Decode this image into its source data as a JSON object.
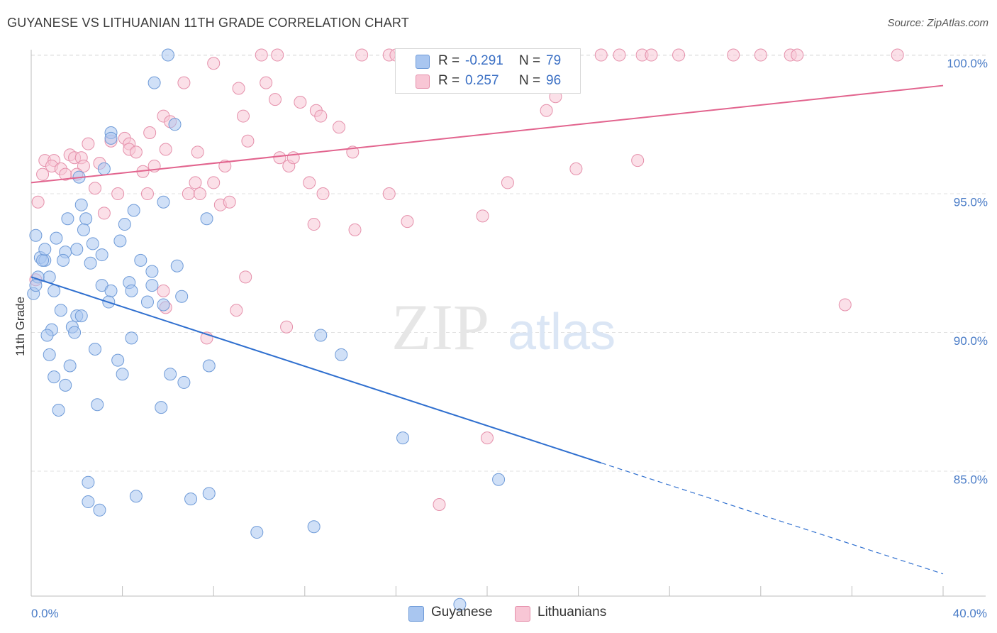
{
  "title": "GUYANESE VS LITHUANIAN 11TH GRADE CORRELATION CHART",
  "source": "Source: ZipAtlas.com",
  "watermark": {
    "part1": "ZIP",
    "part2": "atlas"
  },
  "legend": {
    "rows": [
      {
        "r_label": "R =",
        "r_value": "-0.291",
        "n_label": "N =",
        "n_value": "79",
        "color": "#a9c6f0",
        "border": "#6f9bd8"
      },
      {
        "r_label": "R =",
        "r_value": "0.257",
        "n_label": "N =",
        "n_value": "96",
        "color": "#f8c6d5",
        "border": "#e590ab"
      }
    ]
  },
  "bottom_legend": {
    "guyanese": "Guyanese",
    "lithuanians": "Lithuanians"
  },
  "colors": {
    "guyanese_fill": "#a9c6f0",
    "guyanese_stroke": "#6f9bd8",
    "guyanese_line": "#2f6fcf",
    "lithuanian_fill": "#f8c6d5",
    "lithuanian_stroke": "#e590ab",
    "lithuanian_line": "#e2648e",
    "tick_text": "#4a7cc7",
    "grid": "#e2e2e2"
  },
  "chart_data": {
    "type": "scatter",
    "title": "GUYANESE VS LITHUANIAN 11TH GRADE CORRELATION CHART",
    "xlabel": "",
    "ylabel": "11th Grade",
    "xlim": [
      0,
      40
    ],
    "ylim": [
      80.5,
      100.5
    ],
    "x_ticks": [
      "0.0%",
      "40.0%"
    ],
    "y_ticks": [
      {
        "value": 100,
        "label": "100.0%"
      },
      {
        "value": 95,
        "label": "95.0%"
      },
      {
        "value": 90,
        "label": "90.0%"
      },
      {
        "value": 85,
        "label": "85.0%"
      }
    ],
    "grid": true,
    "series": [
      {
        "name": "Guyanese",
        "trend": {
          "x": [
            0,
            25
          ],
          "y": [
            92.0,
            85.3
          ],
          "extend_to": [
            40,
            81.3
          ]
        },
        "points": [
          [
            6.0,
            100.0
          ],
          [
            5.4,
            99.0
          ],
          [
            3.5,
            97.2
          ],
          [
            3.5,
            97.0
          ],
          [
            6.3,
            97.5
          ],
          [
            3.2,
            95.9
          ],
          [
            2.1,
            95.6
          ],
          [
            2.2,
            94.6
          ],
          [
            1.6,
            94.1
          ],
          [
            2.4,
            94.1
          ],
          [
            2.3,
            93.7
          ],
          [
            4.5,
            94.4
          ],
          [
            4.1,
            93.9
          ],
          [
            5.8,
            94.7
          ],
          [
            7.7,
            94.1
          ],
          [
            0.2,
            93.5
          ],
          [
            2.7,
            93.2
          ],
          [
            3.1,
            92.8
          ],
          [
            3.9,
            93.3
          ],
          [
            1.5,
            92.9
          ],
          [
            0.4,
            92.7
          ],
          [
            0.6,
            92.6
          ],
          [
            1.4,
            92.6
          ],
          [
            2.6,
            92.5
          ],
          [
            4.8,
            92.6
          ],
          [
            6.4,
            92.4
          ],
          [
            5.3,
            92.2
          ],
          [
            0.8,
            92.0
          ],
          [
            3.1,
            91.7
          ],
          [
            4.3,
            91.8
          ],
          [
            5.3,
            91.7
          ],
          [
            1.0,
            91.5
          ],
          [
            3.5,
            91.5
          ],
          [
            4.4,
            91.5
          ],
          [
            6.6,
            91.3
          ],
          [
            3.4,
            91.1
          ],
          [
            5.1,
            91.1
          ],
          [
            5.8,
            91.0
          ],
          [
            1.3,
            90.8
          ],
          [
            2.0,
            90.6
          ],
          [
            2.2,
            90.6
          ],
          [
            1.8,
            90.2
          ],
          [
            0.9,
            90.1
          ],
          [
            0.7,
            89.9
          ],
          [
            1.9,
            90.0
          ],
          [
            4.4,
            89.8
          ],
          [
            12.7,
            89.9
          ],
          [
            0.8,
            89.2
          ],
          [
            2.8,
            89.4
          ],
          [
            3.8,
            89.0
          ],
          [
            1.7,
            88.8
          ],
          [
            7.8,
            88.8
          ],
          [
            13.6,
            89.2
          ],
          [
            1.0,
            88.4
          ],
          [
            4.0,
            88.5
          ],
          [
            6.1,
            88.5
          ],
          [
            1.5,
            88.1
          ],
          [
            6.7,
            88.2
          ],
          [
            1.2,
            87.2
          ],
          [
            2.9,
            87.4
          ],
          [
            5.7,
            87.3
          ],
          [
            16.3,
            86.2
          ],
          [
            2.5,
            84.6
          ],
          [
            20.5,
            84.7
          ],
          [
            2.5,
            83.9
          ],
          [
            4.6,
            84.1
          ],
          [
            7.0,
            84.0
          ],
          [
            7.8,
            84.2
          ],
          [
            3.0,
            83.6
          ],
          [
            9.9,
            82.8
          ],
          [
            12.4,
            83.0
          ],
          [
            18.8,
            80.2
          ],
          [
            0.1,
            91.4
          ],
          [
            0.3,
            92.0
          ],
          [
            0.5,
            92.6
          ],
          [
            0.2,
            91.7
          ],
          [
            0.6,
            93.0
          ],
          [
            1.1,
            93.4
          ],
          [
            2.0,
            93.0
          ]
        ]
      },
      {
        "name": "Lithuanians",
        "trend": {
          "x": [
            0,
            40
          ],
          "y": [
            95.4,
            98.9
          ]
        },
        "points": [
          [
            10.1,
            100.0
          ],
          [
            10.8,
            100.0
          ],
          [
            14.5,
            100.0
          ],
          [
            15.7,
            100.0
          ],
          [
            16.0,
            100.0
          ],
          [
            16.3,
            100.0
          ],
          [
            18.1,
            100.0
          ],
          [
            19.0,
            100.0
          ],
          [
            20.3,
            100.0
          ],
          [
            21.4,
            100.0
          ],
          [
            22.2,
            100.0
          ],
          [
            23.8,
            100.0
          ],
          [
            25.0,
            100.0
          ],
          [
            25.8,
            100.0
          ],
          [
            26.8,
            100.0
          ],
          [
            27.2,
            100.0
          ],
          [
            28.4,
            100.0
          ],
          [
            30.8,
            100.0
          ],
          [
            32.0,
            100.0
          ],
          [
            33.3,
            100.0
          ],
          [
            33.6,
            100.0
          ],
          [
            38.0,
            100.0
          ],
          [
            8.0,
            99.7
          ],
          [
            6.7,
            99.0
          ],
          [
            10.3,
            99.0
          ],
          [
            9.1,
            98.8
          ],
          [
            10.7,
            98.4
          ],
          [
            11.8,
            98.3
          ],
          [
            12.5,
            98.0
          ],
          [
            12.7,
            97.8
          ],
          [
            5.8,
            97.8
          ],
          [
            6.1,
            97.6
          ],
          [
            9.3,
            97.8
          ],
          [
            13.5,
            97.4
          ],
          [
            5.2,
            97.2
          ],
          [
            22.6,
            98.0
          ],
          [
            23.0,
            98.5
          ],
          [
            4.1,
            97.0
          ],
          [
            4.3,
            96.8
          ],
          [
            3.5,
            96.9
          ],
          [
            9.5,
            96.9
          ],
          [
            1.7,
            96.4
          ],
          [
            2.5,
            96.8
          ],
          [
            4.3,
            96.6
          ],
          [
            4.6,
            96.5
          ],
          [
            5.9,
            96.6
          ],
          [
            7.3,
            96.5
          ],
          [
            14.1,
            96.5
          ],
          [
            0.6,
            96.2
          ],
          [
            1.0,
            96.2
          ],
          [
            1.9,
            96.3
          ],
          [
            2.2,
            96.3
          ],
          [
            0.9,
            96.0
          ],
          [
            1.3,
            95.9
          ],
          [
            2.3,
            96.0
          ],
          [
            3.0,
            96.1
          ],
          [
            5.4,
            96.0
          ],
          [
            10.9,
            96.3
          ],
          [
            11.3,
            96.0
          ],
          [
            11.5,
            96.3
          ],
          [
            8.5,
            96.0
          ],
          [
            26.6,
            96.2
          ],
          [
            23.9,
            95.9
          ],
          [
            0.5,
            95.7
          ],
          [
            1.5,
            95.7
          ],
          [
            2.0,
            95.7
          ],
          [
            4.9,
            95.8
          ],
          [
            7.2,
            95.4
          ],
          [
            8.0,
            95.4
          ],
          [
            12.2,
            95.4
          ],
          [
            20.9,
            95.4
          ],
          [
            2.8,
            95.2
          ],
          [
            3.8,
            95.0
          ],
          [
            5.1,
            95.0
          ],
          [
            6.9,
            95.0
          ],
          [
            7.4,
            95.0
          ],
          [
            12.8,
            95.0
          ],
          [
            15.7,
            95.0
          ],
          [
            8.3,
            94.6
          ],
          [
            8.7,
            94.7
          ],
          [
            0.3,
            94.7
          ],
          [
            3.2,
            94.3
          ],
          [
            19.8,
            94.2
          ],
          [
            16.5,
            94.0
          ],
          [
            12.4,
            93.9
          ],
          [
            14.2,
            93.7
          ],
          [
            9.4,
            92.0
          ],
          [
            0.2,
            91.9
          ],
          [
            5.8,
            91.5
          ],
          [
            5.9,
            90.9
          ],
          [
            35.7,
            91.0
          ],
          [
            9.0,
            90.8
          ],
          [
            11.2,
            90.2
          ],
          [
            7.7,
            89.8
          ],
          [
            20.0,
            86.2
          ],
          [
            17.9,
            83.8
          ]
        ]
      }
    ]
  }
}
